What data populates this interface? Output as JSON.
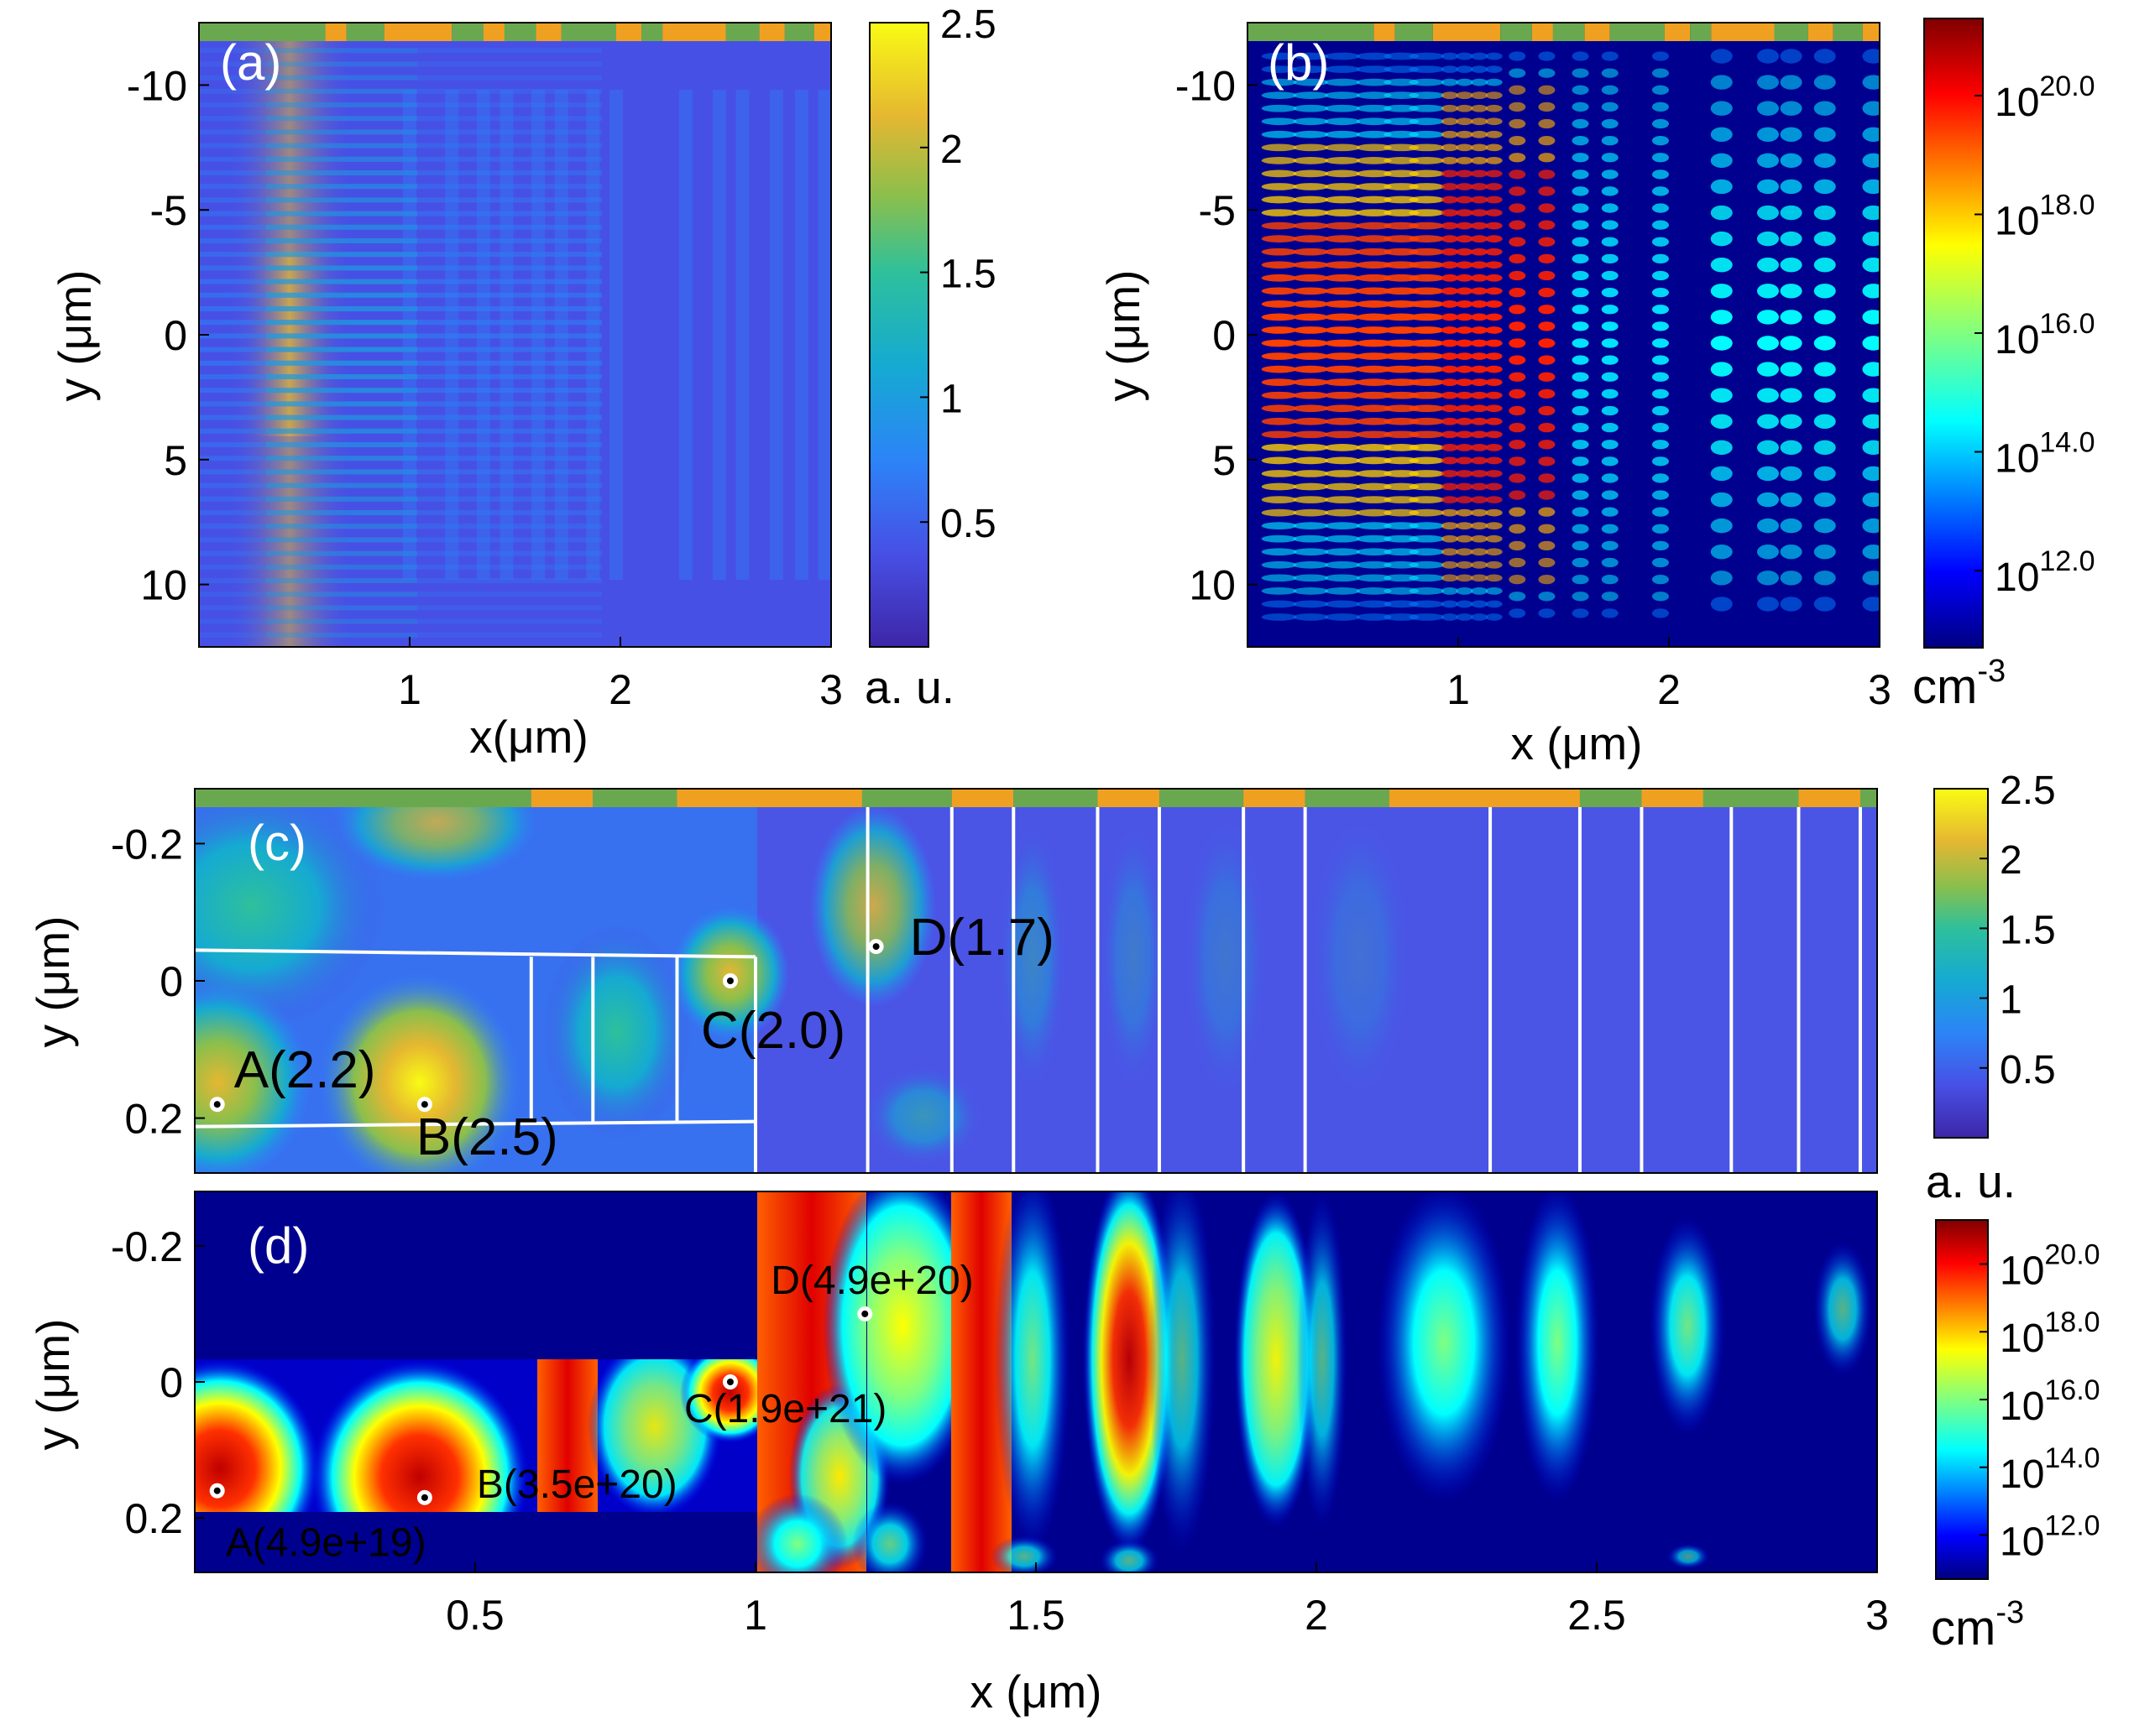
{
  "chart_data": [
    {
      "panel": "(a)",
      "type": "heatmap",
      "description_of_quantity": "field intensity (a.u.)",
      "xlabel": "x(μm)",
      "ylabel": "y (μm)",
      "xlim": [
        0,
        3
      ],
      "ylim": [
        -12.5,
        12.5
      ],
      "y_reversed": true,
      "xticks": [
        1,
        2,
        3
      ],
      "xtick_labels": [
        "1",
        "2",
        "3"
      ],
      "yticks": [
        -10,
        -5,
        0,
        5,
        10
      ],
      "ytick_labels": [
        "-10",
        "-5",
        "0",
        "5",
        "10"
      ],
      "colorbar": {
        "scale": "linear",
        "ticks": [
          0.5,
          1,
          1.5,
          2,
          2.5
        ],
        "tick_labels": [
          "0.5",
          "1",
          "1.5",
          "2",
          "2.5"
        ],
        "label": "a. u.",
        "range": [
          0,
          2.5
        ],
        "colormap": "parula"
      }
    },
    {
      "panel": "(b)",
      "type": "heatmap",
      "description_of_quantity": "carrier density (cm^-3, log scale)",
      "xlabel": "x (μm)",
      "ylabel": "y (μm)",
      "xlim": [
        0,
        3
      ],
      "ylim": [
        -12.5,
        12.5
      ],
      "y_reversed": true,
      "xticks": [
        1,
        2,
        3
      ],
      "xtick_labels": [
        "1",
        "2",
        "3"
      ],
      "yticks": [
        -10,
        -5,
        0,
        5,
        10
      ],
      "ytick_labels": [
        "-10",
        "-5",
        "0",
        "5",
        "10"
      ],
      "colorbar": {
        "scale": "log",
        "ticks": [
          12,
          14,
          16,
          18,
          20
        ],
        "tick_base": "10",
        "tick_exponents": [
          "12.0",
          "14.0",
          "16.0",
          "18.0",
          "20.0"
        ],
        "label_base": "cm",
        "label_exp": "-3",
        "range": [
          10.7,
          21.3
        ],
        "colormap": "jet"
      }
    },
    {
      "panel": "(c)",
      "type": "heatmap",
      "description_of_quantity": "field intensity (a.u.), zoomed",
      "xlim": [
        0,
        3
      ],
      "ylim": [
        -0.28,
        0.28
      ],
      "y_reversed": true,
      "ylabel": "y (μm)",
      "yticks": [
        -0.2,
        0,
        0.2
      ],
      "ytick_labels": [
        "-0.2",
        "0",
        "0.2"
      ],
      "annotations": [
        {
          "label": "A(2.2)",
          "x": 0.04,
          "y": 0.18
        },
        {
          "label": "B(2.5)",
          "x": 0.41,
          "y": 0.18
        },
        {
          "label": "C(2.0)",
          "x": 0.955,
          "y": 0.0
        },
        {
          "label": "D(1.7)",
          "x": 1.215,
          "y": -0.05
        }
      ],
      "colorbar": {
        "scale": "linear",
        "ticks": [
          0.5,
          1,
          1.5,
          2,
          2.5
        ],
        "tick_labels": [
          "0.5",
          "1",
          "1.5",
          "2",
          "2.5"
        ],
        "label": "a. u.",
        "range": [
          0,
          2.5
        ],
        "colormap": "parula"
      }
    },
    {
      "panel": "(d)",
      "type": "heatmap",
      "description_of_quantity": "carrier density (cm^-3, log scale), zoomed",
      "xlabel": "x (μm)",
      "ylabel": "y (μm)",
      "xlim": [
        0,
        3
      ],
      "ylim": [
        -0.28,
        0.28
      ],
      "y_reversed": true,
      "xticks": [
        0.5,
        1,
        1.5,
        2,
        2.5,
        3
      ],
      "xtick_labels": [
        "0.5",
        "1",
        "1.5",
        "2",
        "2.5",
        "3"
      ],
      "yticks": [
        -0.2,
        0,
        0.2
      ],
      "ytick_labels": [
        "-0.2",
        "0",
        "0.2"
      ],
      "annotations": [
        {
          "label": "A(4.9e+19)",
          "x": 0.04,
          "y": 0.16
        },
        {
          "label": "B(3.5e+20)",
          "x": 0.41,
          "y": 0.17
        },
        {
          "label": "C(1.9e+21)",
          "x": 0.955,
          "y": 0.0
        },
        {
          "label": "D(4.9e+20)",
          "x": 1.195,
          "y": -0.1
        }
      ],
      "colorbar": {
        "scale": "log",
        "ticks": [
          12,
          14,
          16,
          18,
          20
        ],
        "tick_base": "10",
        "tick_exponents": [
          "12.0",
          "14.0",
          "16.0",
          "18.0",
          "20.0"
        ],
        "label_base": "cm",
        "label_exp": "-3",
        "range": [
          10.7,
          21.3
        ],
        "colormap": "jet"
      }
    }
  ],
  "structure": {
    "segment_colors": {
      "green": "#6aa84f",
      "orange": "#f0a020"
    },
    "boundary_x_um": [
      1.0,
      1.2,
      1.35,
      1.46,
      1.61,
      1.72,
      1.87,
      1.98,
      2.31,
      2.47,
      2.58,
      2.74,
      2.86,
      2.97
    ],
    "top_bar_segments_c": [
      {
        "x0": 0.0,
        "x1": 0.6,
        "c": "green"
      },
      {
        "x0": 0.6,
        "x1": 0.71,
        "c": "orange"
      },
      {
        "x0": 0.71,
        "x1": 0.86,
        "c": "green"
      },
      {
        "x0": 0.86,
        "x1": 1.19,
        "c": "orange"
      },
      {
        "x0": 1.19,
        "x1": 1.35,
        "c": "green"
      },
      {
        "x0": 1.35,
        "x1": 1.46,
        "c": "orange"
      },
      {
        "x0": 1.46,
        "x1": 1.61,
        "c": "green"
      },
      {
        "x0": 1.61,
        "x1": 1.72,
        "c": "orange"
      },
      {
        "x0": 1.72,
        "x1": 1.87,
        "c": "green"
      },
      {
        "x0": 1.87,
        "x1": 1.98,
        "c": "orange"
      },
      {
        "x0": 1.98,
        "x1": 2.13,
        "c": "green"
      },
      {
        "x0": 2.13,
        "x1": 2.47,
        "c": "orange"
      },
      {
        "x0": 2.47,
        "x1": 2.58,
        "c": "green"
      },
      {
        "x0": 2.58,
        "x1": 2.69,
        "c": "orange"
      },
      {
        "x0": 2.69,
        "x1": 2.86,
        "c": "green"
      },
      {
        "x0": 2.86,
        "x1": 2.97,
        "c": "orange"
      },
      {
        "x0": 2.97,
        "x1": 3.0,
        "c": "green"
      }
    ],
    "top_bar_segments_ab": [
      {
        "x0": 0.0,
        "x1": 0.6,
        "c": "green"
      },
      {
        "x0": 0.6,
        "x1": 0.7,
        "c": "orange"
      },
      {
        "x0": 0.7,
        "x1": 0.88,
        "c": "green"
      },
      {
        "x0": 0.88,
        "x1": 1.2,
        "c": "orange"
      },
      {
        "x0": 1.2,
        "x1": 1.35,
        "c": "green"
      },
      {
        "x0": 1.35,
        "x1": 1.45,
        "c": "orange"
      },
      {
        "x0": 1.45,
        "x1": 1.6,
        "c": "green"
      },
      {
        "x0": 1.6,
        "x1": 1.72,
        "c": "orange"
      },
      {
        "x0": 1.72,
        "x1": 1.98,
        "c": "green"
      },
      {
        "x0": 1.98,
        "x1": 2.1,
        "c": "orange"
      },
      {
        "x0": 2.1,
        "x1": 2.2,
        "c": "green"
      },
      {
        "x0": 2.2,
        "x1": 2.5,
        "c": "orange"
      },
      {
        "x0": 2.5,
        "x1": 2.66,
        "c": "green"
      },
      {
        "x0": 2.66,
        "x1": 2.78,
        "c": "orange"
      },
      {
        "x0": 2.78,
        "x1": 2.92,
        "c": "green"
      },
      {
        "x0": 2.92,
        "x1": 3.0,
        "c": "orange"
      }
    ]
  }
}
